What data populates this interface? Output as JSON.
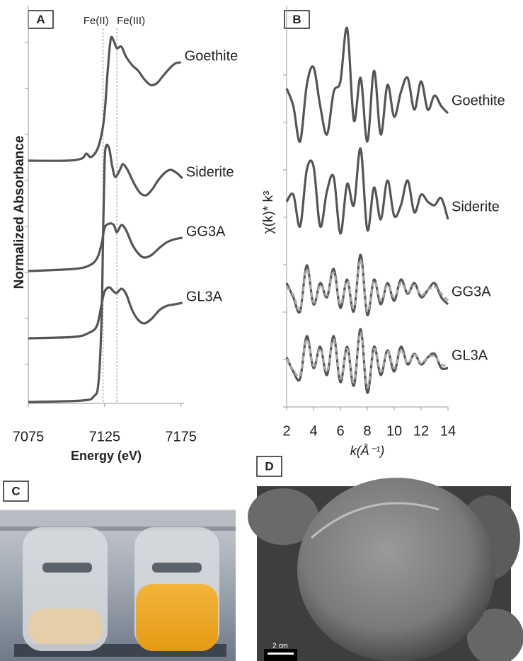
{
  "chart_data": [
    {
      "type": "line",
      "panel": "A",
      "x_label": "Energy (eV)",
      "y_label": "Normalized Absorbance",
      "xlim": [
        7075,
        7177
      ],
      "xticks": [
        7075,
        7125,
        7175
      ],
      "ylim": [
        0,
        533
      ],
      "yticks": [
        55,
        120,
        185,
        250,
        315,
        380,
        445,
        510
      ],
      "annotations": [
        {
          "text": "Fe(II)",
          "x": 7124
        },
        {
          "text": "Fe(III)",
          "x": 7133
        }
      ],
      "series": [
        {
          "name": "Goethite",
          "color": "#555555",
          "x": [
            7075,
            7100,
            7110,
            7113,
            7116,
            7120,
            7123,
            7125,
            7127,
            7129,
            7131,
            7133,
            7136,
            7139,
            7143,
            7147,
            7151,
            7155,
            7159,
            7163,
            7167,
            7171,
            7175
          ],
          "values": [
            343,
            343,
            346,
            353,
            348,
            358,
            380,
            410,
            470,
            515,
            512,
            502,
            504,
            490,
            478,
            470,
            458,
            450,
            452,
            462,
            472,
            480,
            482
          ]
        },
        {
          "name": "Siderite",
          "color": "#555555",
          "x": [
            7075,
            7110,
            7118,
            7121,
            7123,
            7124,
            7125,
            7126,
            7128,
            7130,
            7132,
            7135,
            7137,
            7140,
            7144,
            7148,
            7152,
            7156,
            7160,
            7164,
            7168,
            7172,
            7176
          ],
          "values": [
            2,
            4,
            10,
            30,
            120,
            240,
            340,
            364,
            360,
            335,
            320,
            330,
            338,
            330,
            312,
            298,
            294,
            302,
            315,
            325,
            330,
            326,
            318
          ]
        },
        {
          "name": "GG3A",
          "color": "#555555",
          "x": [
            7075,
            7105,
            7115,
            7120,
            7123,
            7125,
            7128,
            7131,
            7133,
            7136,
            7139,
            7143,
            7147,
            7151,
            7156,
            7161,
            7166,
            7171,
            7176
          ],
          "values": [
            187,
            190,
            195,
            205,
            225,
            248,
            254,
            252,
            242,
            252,
            245,
            225,
            212,
            206,
            210,
            220,
            228,
            232,
            234
          ]
        },
        {
          "name": "GL3A",
          "color": "#555555",
          "x": [
            7075,
            7105,
            7115,
            7120,
            7123,
            7125,
            7128,
            7131,
            7133,
            7136,
            7139,
            7143,
            7147,
            7151,
            7156,
            7161,
            7166,
            7171,
            7176
          ],
          "values": [
            92,
            94,
            100,
            110,
            140,
            158,
            164,
            158,
            156,
            162,
            155,
            132,
            118,
            113,
            120,
            132,
            138,
            140,
            142
          ]
        }
      ]
    },
    {
      "type": "line",
      "panel": "B",
      "x_label": "k(Å⁻¹)",
      "y_label": "χ(k)* k³",
      "xlim": [
        2,
        14
      ],
      "xticks": [
        2,
        4,
        6,
        8,
        10,
        12,
        14
      ],
      "ylim": [
        0,
        536
      ],
      "yticks": [
        0,
        67,
        134,
        201,
        268,
        335,
        402,
        469,
        536
      ],
      "x": [
        2,
        2.5,
        3,
        3.5,
        4,
        4.5,
        5,
        5.5,
        6,
        6.5,
        7,
        7.5,
        8,
        8.5,
        9,
        9.5,
        10,
        10.5,
        11,
        11.5,
        12,
        12.5,
        13,
        13.5,
        14
      ],
      "fit_color": "#aaaaaa",
      "series": [
        {
          "name": "Goethite",
          "color": "#555555",
          "values": [
            450,
            425,
            375,
            455,
            480,
            425,
            385,
            445,
            460,
            535,
            405,
            465,
            375,
            475,
            385,
            455,
            410,
            445,
            465,
            420,
            460,
            420,
            440,
            425,
            415
          ]
        },
        {
          "name": "Siderite",
          "color": "#555555",
          "values": [
            290,
            300,
            255,
            335,
            340,
            255,
            305,
            325,
            245,
            315,
            285,
            365,
            250,
            310,
            265,
            320,
            270,
            285,
            320,
            275,
            300,
            290,
            285,
            295,
            265
          ]
        },
        {
          "name": "GG3A",
          "color": "#555555",
          "values": [
            175,
            155,
            135,
            200,
            145,
            175,
            155,
            195,
            140,
            180,
            135,
            215,
            130,
            180,
            145,
            175,
            150,
            180,
            160,
            175,
            155,
            165,
            175,
            155,
            145
          ],
          "fit": [
            170,
            158,
            138,
            195,
            148,
            172,
            158,
            190,
            145,
            178,
            140,
            208,
            135,
            178,
            150,
            172,
            155,
            175,
            162,
            172,
            158,
            165,
            170,
            160,
            150
          ]
        },
        {
          "name": "GL3A",
          "color": "#555555",
          "values": [
            70,
            50,
            40,
            100,
            55,
            85,
            45,
            100,
            35,
            85,
            30,
            110,
            20,
            85,
            45,
            80,
            50,
            85,
            60,
            75,
            60,
            70,
            75,
            55,
            55
          ],
          "fit": [
            68,
            52,
            45,
            95,
            58,
            82,
            50,
            95,
            40,
            82,
            35,
            105,
            28,
            82,
            50,
            78,
            55,
            80,
            62,
            74,
            62,
            70,
            72,
            60,
            58
          ]
        }
      ]
    }
  ],
  "photos": [
    {
      "panel": "C"
    },
    {
      "panel": "D",
      "scale_bar": "2 cm"
    }
  ]
}
